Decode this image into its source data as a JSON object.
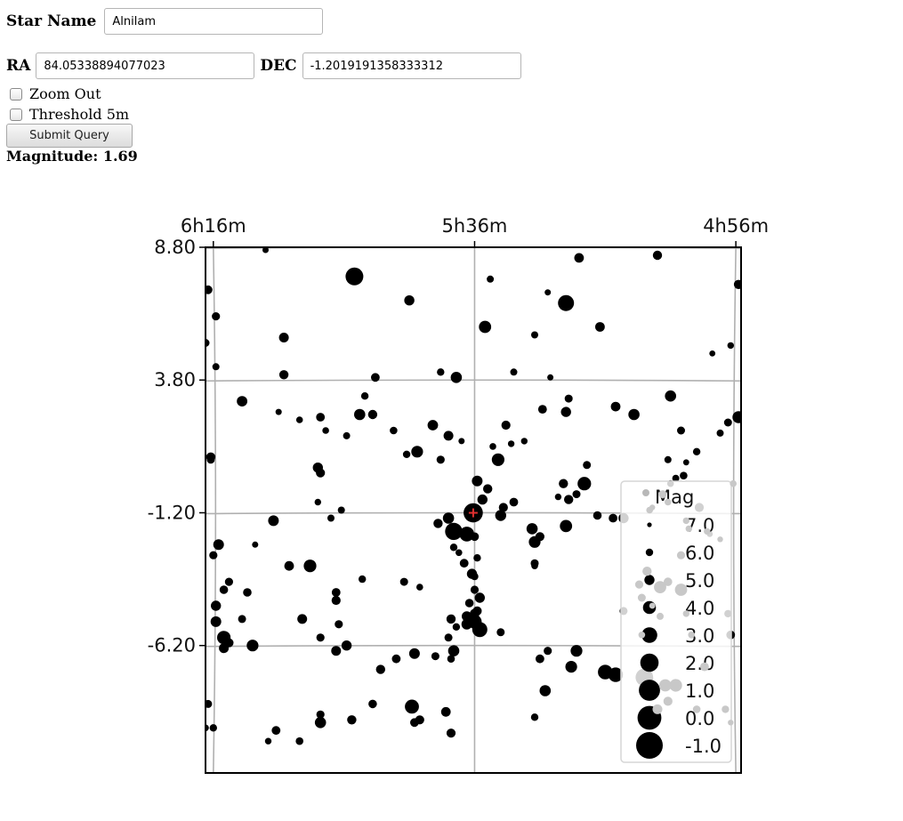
{
  "form": {
    "star_name_label": "Star Name",
    "star_name_value": "Alnilam",
    "ra_label": "RA",
    "ra_value": "84.05338894077023",
    "dec_label": "DEC",
    "dec_value": "-1.2019191358333312",
    "zoom_out_label": "Zoom Out",
    "zoom_out_checked": false,
    "threshold_label": "Threshold 5m",
    "threshold_checked": false,
    "submit_label": "Submit Query",
    "magnitude_text": "Magnitude: 1.69"
  },
  "chart_data": {
    "type": "scatter",
    "title": "",
    "xlabel": "",
    "ylabel": "",
    "x_tick_labels": [
      "6h16m",
      "5h36m",
      "4h56m"
    ],
    "x_ticks_deg": [
      94,
      84,
      74
    ],
    "y_tick_labels": [
      "8.80",
      "3.80",
      "-1.20",
      "-6.20"
    ],
    "y_ticks_deg": [
      8.8,
      3.8,
      -1.2,
      -6.2
    ],
    "xlim_deg": [
      94.3,
      73.8
    ],
    "ylim_deg": [
      8.8,
      -11.0
    ],
    "x_axis_position": "top",
    "grid": true,
    "highlight": {
      "name": "Alnilam",
      "ra": 84.0534,
      "dec": -1.2019,
      "mag": 1.69,
      "color": "#e03030"
    },
    "legend": {
      "title": "Mag",
      "position": "lower-right",
      "entries": [
        "7.0",
        "6.0",
        "5.0",
        "4.0",
        "3.0",
        "2.0",
        "1.0",
        "0.0",
        "-1.0"
      ],
      "values": [
        7.0,
        6.0,
        5.0,
        4.0,
        3.0,
        2.0,
        1.0,
        0.0,
        -1.0
      ]
    },
    "star_color": "#000000",
    "grid_color": "#b0b0b0",
    "stars": [
      [
        92.0,
        8.7,
        6.4
      ],
      [
        88.6,
        7.7,
        2.2
      ],
      [
        86.5,
        6.8,
        5.0
      ],
      [
        83.4,
        7.6,
        6.1
      ],
      [
        81.2,
        7.1,
        6.4
      ],
      [
        80.5,
        6.7,
        2.9
      ],
      [
        80.0,
        8.4,
        5.2
      ],
      [
        77.0,
        8.5,
        5.3
      ],
      [
        74.2,
        5.1,
        6.3
      ],
      [
        73.9,
        7.4,
        5.3
      ],
      [
        94.2,
        7.2,
        5.5
      ],
      [
        93.9,
        6.2,
        5.7
      ],
      [
        94.3,
        5.2,
        5.8
      ],
      [
        93.9,
        4.3,
        6.1
      ],
      [
        91.3,
        5.4,
        5.1
      ],
      [
        91.3,
        4.0,
        5.3
      ],
      [
        88.2,
        3.2,
        6.0
      ],
      [
        85.3,
        4.1,
        6.0
      ],
      [
        84.7,
        3.9,
        4.6
      ],
      [
        83.6,
        5.8,
        4.2
      ],
      [
        82.5,
        4.1,
        6.1
      ],
      [
        81.7,
        5.5,
        6.1
      ],
      [
        81.1,
        3.9,
        6.4
      ],
      [
        79.2,
        5.8,
        5.2
      ],
      [
        87.8,
        3.9,
        5.5
      ],
      [
        92.9,
        3.0,
        4.9
      ],
      [
        90.7,
        2.3,
        6.2
      ],
      [
        89.9,
        2.4,
        5.5
      ],
      [
        89.7,
        1.9,
        6.2
      ],
      [
        88.9,
        1.7,
        6.1
      ],
      [
        88.4,
        2.5,
        4.6
      ],
      [
        87.9,
        2.5,
        5.3
      ],
      [
        87.1,
        1.9,
        5.9
      ],
      [
        85.6,
        2.1,
        4.9
      ],
      [
        85.3,
        0.8,
        5.7
      ],
      [
        82.6,
        1.4,
        6.3
      ],
      [
        82.8,
        2.1,
        5.4
      ],
      [
        82.1,
        1.5,
        6.3
      ],
      [
        81.4,
        2.7,
        5.5
      ],
      [
        80.5,
        2.6,
        5.0
      ],
      [
        80.4,
        3.1,
        5.8
      ],
      [
        79.7,
        0.6,
        5.8
      ],
      [
        78.6,
        2.8,
        5.2
      ],
      [
        77.9,
        2.5,
        4.6
      ],
      [
        76.5,
        3.2,
        4.6
      ],
      [
        76.1,
        1.9,
        5.8
      ],
      [
        76.6,
        0.8,
        6.1
      ],
      [
        75.9,
        0.7,
        6.5
      ],
      [
        74.6,
        1.8,
        6.1
      ],
      [
        73.9,
        2.4,
        4.3
      ],
      [
        74.3,
        2.2,
        5.8
      ],
      [
        74.9,
        4.8,
        6.5
      ],
      [
        75.5,
        1.1,
        6.0
      ],
      [
        89.9,
        0.3,
        5.4
      ],
      [
        90.0,
        -0.8,
        6.3
      ],
      [
        91.7,
        -1.5,
        4.8
      ],
      [
        92.4,
        -2.4,
        6.4
      ],
      [
        93.4,
        -3.8,
        5.7
      ],
      [
        93.6,
        -4.1,
        5.6
      ],
      [
        92.7,
        -4.2,
        5.6
      ],
      [
        92.9,
        -5.2,
        5.8
      ],
      [
        91.1,
        -3.2,
        5.2
      ],
      [
        90.3,
        -3.2,
        4.1
      ],
      [
        89.1,
        -1.1,
        6.1
      ],
      [
        89.5,
        -1.4,
        6.1
      ],
      [
        89.3,
        -4.2,
        5.5
      ],
      [
        89.3,
        -4.5,
        5.4
      ],
      [
        88.3,
        -3.7,
        6.0
      ],
      [
        86.7,
        -3.8,
        5.8
      ],
      [
        86.1,
        -4.0,
        6.2
      ],
      [
        85.4,
        -1.6,
        5.3
      ],
      [
        85.0,
        -1.4,
        4.6
      ],
      [
        84.8,
        -1.9,
        2.4
      ],
      [
        84.3,
        -2.0,
        3.3
      ],
      [
        84.6,
        -2.7,
        6.2
      ],
      [
        84.8,
        -2.5,
        6.0
      ],
      [
        84.4,
        -3.1,
        5.5
      ],
      [
        84.0,
        -2.1,
        5.6
      ],
      [
        83.9,
        -2.9,
        6.0
      ],
      [
        84.0,
        -3.6,
        6.0
      ],
      [
        84.1,
        -3.5,
        5.0
      ],
      [
        83.7,
        -0.7,
        5.0
      ],
      [
        83.5,
        -0.3,
        5.3
      ],
      [
        83.0,
        -1.3,
        4.7
      ],
      [
        82.5,
        -0.8,
        5.5
      ],
      [
        82.9,
        -1.0,
        5.4
      ],
      [
        81.8,
        -1.8,
        4.6
      ],
      [
        81.7,
        -2.3,
        4.4
      ],
      [
        81.5,
        -2.1,
        5.4
      ],
      [
        81.7,
        -3.2,
        6.2
      ],
      [
        81.7,
        -3.1,
        5.8
      ],
      [
        80.5,
        -1.7,
        4.2
      ],
      [
        80.4,
        -0.7,
        5.3
      ],
      [
        80.1,
        -0.5,
        5.8
      ],
      [
        79.3,
        -1.3,
        5.6
      ],
      [
        79.8,
        -0.1,
        3.8
      ],
      [
        80.6,
        -0.1,
        5.3
      ],
      [
        80.8,
        -0.6,
        6.3
      ],
      [
        78.7,
        -1.4,
        5.5
      ],
      [
        78.3,
        -1.4,
        5.0
      ],
      [
        74.2,
        -5.8,
        5.5
      ],
      [
        80.1,
        -6.4,
        4.4
      ],
      [
        79.0,
        -7.2,
        3.4
      ],
      [
        80.3,
        -7.0,
        4.4
      ],
      [
        78.3,
        -4.9,
        5.8
      ],
      [
        85.0,
        -5.9,
        5.8
      ],
      [
        84.7,
        -5.5,
        6.0
      ],
      [
        84.9,
        -5.2,
        5.3
      ],
      [
        83.9,
        -4.9,
        5.4
      ],
      [
        83.8,
        -4.4,
        5.0
      ],
      [
        84.2,
        -4.6,
        5.6
      ],
      [
        84.3,
        -5.1,
        5.0
      ],
      [
        84.3,
        -5.4,
        4.8
      ],
      [
        84.0,
        -5.3,
        3.6
      ],
      [
        83.8,
        -5.6,
        3.2
      ],
      [
        84.0,
        -5.0,
        5.2
      ],
      [
        84.0,
        -4.1,
        5.7
      ],
      [
        83.0,
        -5.7,
        5.8
      ],
      [
        81.5,
        -6.7,
        5.5
      ],
      [
        81.2,
        -6.4,
        5.7
      ],
      [
        81.3,
        -7.9,
        4.6
      ],
      [
        78.6,
        -7.3,
        3.4
      ],
      [
        77.5,
        -7.4,
        2.3
      ],
      [
        84.8,
        -6.4,
        4.6
      ],
      [
        84.9,
        -6.7,
        5.9
      ],
      [
        85.5,
        -6.6,
        5.8
      ],
      [
        86.3,
        -6.5,
        4.8
      ],
      [
        87.0,
        -6.7,
        5.5
      ],
      [
        88.9,
        -6.2,
        5.0
      ],
      [
        89.9,
        -5.9,
        5.7
      ],
      [
        90.6,
        -5.2,
        5.1
      ],
      [
        92.5,
        -6.2,
        4.4
      ],
      [
        93.6,
        -6.3,
        5.1
      ],
      [
        93.4,
        -6.1,
        5.4
      ],
      [
        93.9,
        -5.3,
        4.8
      ],
      [
        93.6,
        -5.9,
        3.8
      ],
      [
        93.9,
        -4.7,
        5.0
      ],
      [
        89.3,
        -6.4,
        5.1
      ],
      [
        87.6,
        -7.1,
        5.3
      ],
      [
        81.7,
        -8.9,
        6.0
      ],
      [
        84.9,
        -9.5,
        5.4
      ],
      [
        85.1,
        -8.7,
        5.2
      ],
      [
        86.1,
        -9.0,
        5.4
      ],
      [
        86.4,
        -8.5,
        3.6
      ],
      [
        86.3,
        -9.1,
        5.5
      ],
      [
        87.9,
        -8.4,
        5.6
      ],
      [
        89.9,
        -9.1,
        4.6
      ],
      [
        89.9,
        -8.8,
        5.7
      ],
      [
        91.6,
        -9.4,
        5.5
      ],
      [
        90.7,
        -9.8,
        5.9
      ],
      [
        94.2,
        -8.4,
        5.8
      ],
      [
        94.0,
        -9.3,
        6.0
      ],
      [
        94.3,
        -9.3,
        6.2
      ],
      [
        91.9,
        -9.8,
        6.3
      ],
      [
        88.7,
        -9.0,
        5.3
      ],
      [
        89.2,
        -5.4,
        5.7
      ],
      [
        74.3,
        -5.0,
        6.0
      ],
      [
        94.0,
        -2.8,
        5.7
      ],
      [
        94.1,
        0.9,
        5.3
      ],
      [
        94.1,
        0.8,
        5.8
      ],
      [
        93.8,
        -2.4,
        4.8
      ],
      [
        90.0,
        0.5,
        5.0
      ],
      [
        91.5,
        2.6,
        6.4
      ],
      [
        86.2,
        1.1,
        4.4
      ],
      [
        86.6,
        1.0,
        6.0
      ],
      [
        85.0,
        1.7,
        5.1
      ],
      [
        84.5,
        1.5,
        6.4
      ],
      [
        83.3,
        1.3,
        6.2
      ],
      [
        83.1,
        0.8,
        4.1
      ],
      [
        83.9,
        0.0,
        4.8
      ],
      [
        75.0,
        -2.0,
        6.5
      ],
      [
        75.4,
        -1.0,
        5.4
      ],
      [
        76.0,
        0.2,
        5.9
      ],
      [
        76.3,
        0.1,
        6.1
      ],
      [
        76.5,
        -0.1,
        6.2
      ]
    ],
    "overlay_stars": [
      [
        77.3,
        -1.1,
        6.2
      ],
      [
        77.2,
        -1.0,
        6.6
      ],
      [
        75.8,
        -1.8,
        6.3
      ],
      [
        75.1,
        -1.9,
        6.3
      ],
      [
        74.6,
        -2.2,
        6.6
      ],
      [
        76.1,
        -2.8,
        5.7
      ],
      [
        77.4,
        -3.4,
        5.3
      ],
      [
        77.7,
        -3.9,
        5.7
      ],
      [
        77.6,
        -4.4,
        5.8
      ],
      [
        77.2,
        -4.7,
        6.5
      ],
      [
        76.6,
        -3.8,
        5.6
      ],
      [
        76.9,
        -4.0,
        4.2
      ],
      [
        76.1,
        -4.1,
        4.2
      ],
      [
        75.9,
        -5.0,
        6.3
      ],
      [
        76.9,
        -5.1,
        6.1
      ],
      [
        77.6,
        -5.8,
        6.2
      ],
      [
        75.7,
        -5.8,
        6.2
      ],
      [
        75.2,
        -7.0,
        5.5
      ],
      [
        76.7,
        -7.7,
        4.2
      ],
      [
        76.3,
        -7.7,
        4.1
      ],
      [
        75.5,
        -8.6,
        5.9
      ],
      [
        74.4,
        -8.6,
        6.0
      ],
      [
        74.2,
        -9.1,
        6.6
      ],
      [
        76.6,
        -8.3,
        5.4
      ],
      [
        77.0,
        -8.6,
        5.1
      ],
      [
        74.1,
        -0.1,
        6.2
      ],
      [
        76.6,
        -0.8,
        6.2
      ],
      [
        76.8,
        -0.5,
        5.8
      ],
      [
        75.9,
        -1.5,
        6.3
      ]
    ]
  }
}
